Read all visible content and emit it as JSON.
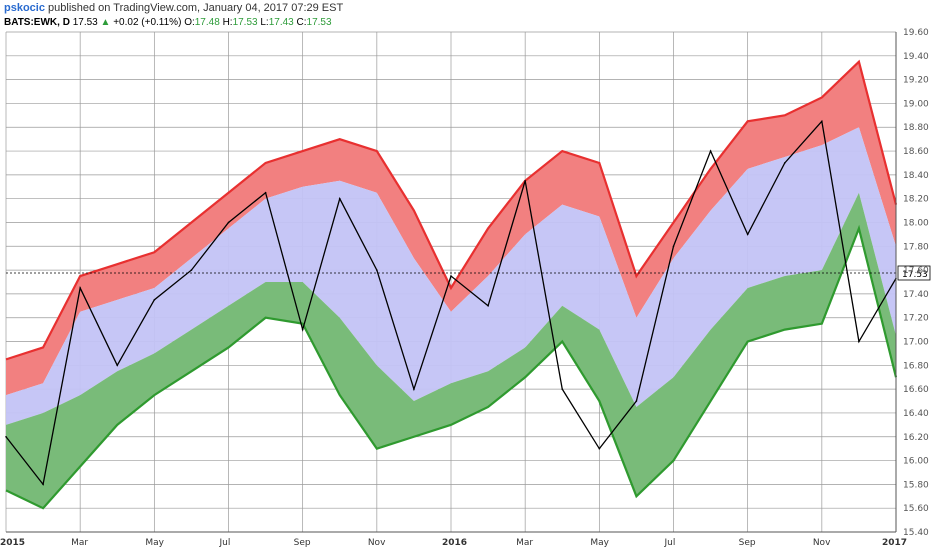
{
  "header": {
    "author": "pskocic",
    "published_text": "published on TradingView.com, January 04, 2017 07:29 EST"
  },
  "legend": {
    "symbol": "BATS:EWK, D",
    "last": "17.53",
    "change_arrow": "▲",
    "change": "+0.02 (+0.11%)",
    "open_label": "O:",
    "open": "17.48",
    "high_label": "H:",
    "high": "17.53",
    "low_label": "L:",
    "low": "17.43",
    "close_label": "C:",
    "close": "17.53"
  },
  "colors": {
    "upper_band": "#f28080",
    "upper_band_line": "#e83030",
    "middle_band": "#c3c3f5",
    "lower_band": "#79bb79",
    "lower_band_line": "#2f9a2f",
    "price_line": "#000000",
    "grid": "#9a9a9a"
  },
  "chart_data": {
    "type": "line",
    "ylim": [
      15.4,
      19.6
    ],
    "yticks": [
      "19.60",
      "19.40",
      "19.20",
      "19.00",
      "18.80",
      "18.60",
      "18.40",
      "18.20",
      "18.00",
      "17.80",
      "17.60",
      "17.40",
      "17.20",
      "17.00",
      "16.80",
      "16.60",
      "16.40",
      "16.20",
      "16.00",
      "15.80",
      "15.60",
      "15.40"
    ],
    "xticks": [
      "2015",
      "Mar",
      "May",
      "Jul",
      "Sep",
      "Nov",
      "2016",
      "Mar",
      "May",
      "Jul",
      "Sep",
      "Nov",
      "2017"
    ],
    "last_price": 17.53,
    "last_price_label": "17.53",
    "x": [
      0,
      1,
      2,
      3,
      4,
      5,
      6,
      7,
      8,
      9,
      10,
      11,
      12,
      13,
      14,
      15,
      16,
      17,
      18,
      19,
      20,
      21,
      22,
      23,
      24
    ],
    "series": [
      {
        "role": "upper",
        "values": [
          16.85,
          16.95,
          17.55,
          17.65,
          17.75,
          18.0,
          18.25,
          18.5,
          18.6,
          18.7,
          18.6,
          18.1,
          17.45,
          17.95,
          18.35,
          18.6,
          18.5,
          17.55,
          18.0,
          18.45,
          18.85,
          18.9,
          19.05,
          19.35,
          18.15
        ]
      },
      {
        "role": "upper_inner",
        "values": [
          16.55,
          16.65,
          17.25,
          17.35,
          17.45,
          17.7,
          17.95,
          18.2,
          18.3,
          18.35,
          18.25,
          17.7,
          17.25,
          17.55,
          17.9,
          18.15,
          18.05,
          17.2,
          17.7,
          18.1,
          18.45,
          18.55,
          18.65,
          18.8,
          17.8
        ]
      },
      {
        "role": "lower_inner",
        "values": [
          16.3,
          16.4,
          16.55,
          16.75,
          16.9,
          17.1,
          17.3,
          17.5,
          17.5,
          17.2,
          16.8,
          16.5,
          16.65,
          16.75,
          16.95,
          17.3,
          17.1,
          16.45,
          16.7,
          17.1,
          17.45,
          17.55,
          17.6,
          18.25,
          17.05
        ]
      },
      {
        "role": "lower",
        "values": [
          15.75,
          15.6,
          15.95,
          16.3,
          16.55,
          16.75,
          16.95,
          17.2,
          17.15,
          16.55,
          16.1,
          16.2,
          16.3,
          16.45,
          16.7,
          17.0,
          16.5,
          15.7,
          16.0,
          16.5,
          17.0,
          17.1,
          17.15,
          17.95,
          16.7
        ]
      },
      {
        "role": "price",
        "values": [
          16.2,
          15.8,
          17.45,
          16.8,
          17.35,
          17.6,
          18.0,
          18.25,
          17.1,
          18.2,
          17.6,
          16.6,
          17.55,
          17.3,
          18.35,
          16.6,
          16.1,
          16.5,
          17.8,
          18.6,
          17.9,
          18.5,
          18.85,
          17.0,
          17.53
        ]
      }
    ]
  }
}
